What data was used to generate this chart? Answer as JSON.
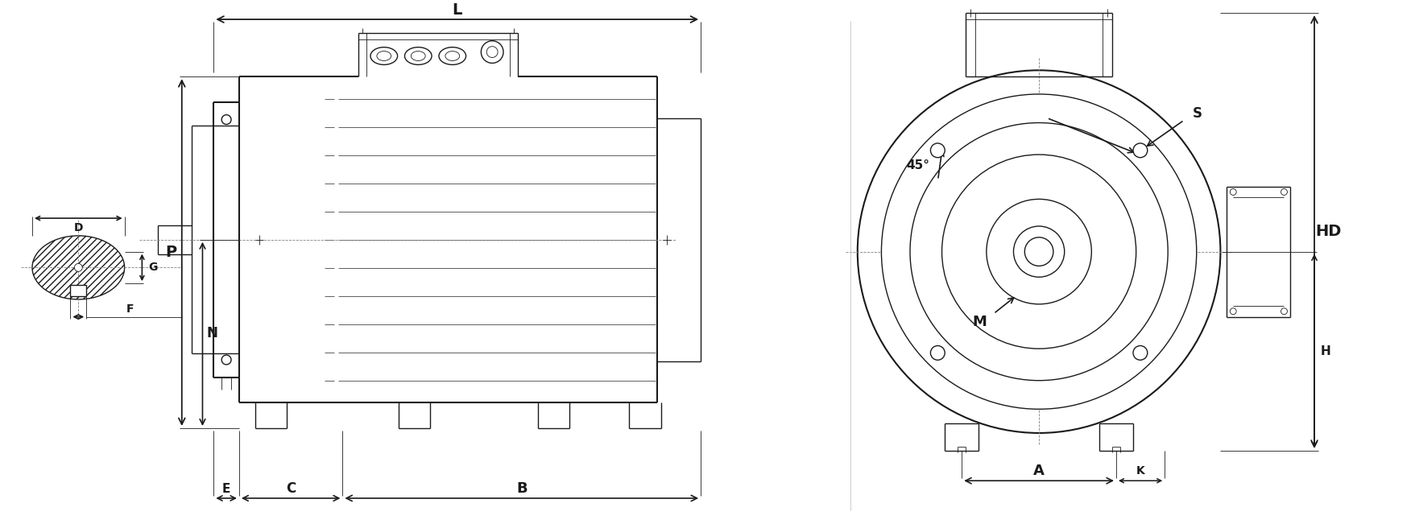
{
  "bg_color": "#ffffff",
  "line_color": "#1a1a1a",
  "line_width": 1.0,
  "thin_lw": 0.6,
  "thick_lw": 1.5,
  "fig_width": 17.57,
  "fig_height": 6.51,
  "labels": {
    "L": "L",
    "B": "B",
    "C": "C",
    "E": "E",
    "P": "P",
    "N": "N",
    "F": "F",
    "G": "G",
    "D": "D",
    "HD": "HD",
    "H": "H",
    "A": "A",
    "K": "K",
    "S": "S",
    "M": "M",
    "angle": "45°"
  }
}
